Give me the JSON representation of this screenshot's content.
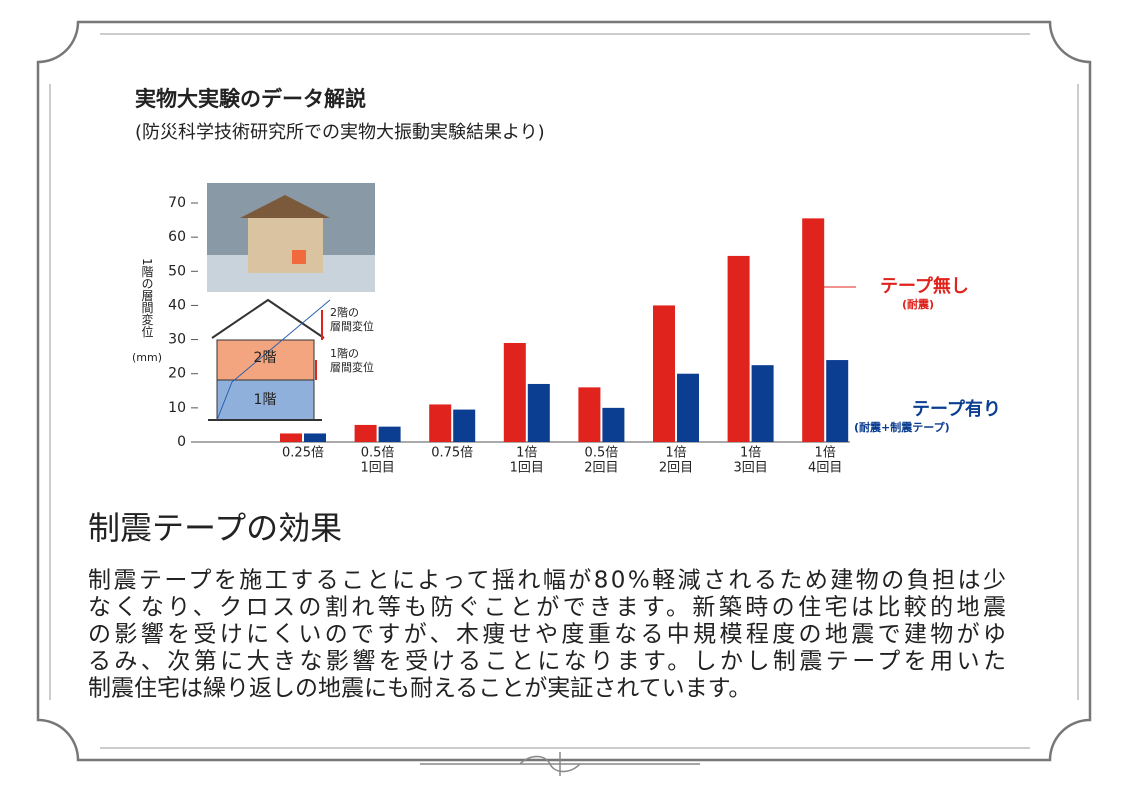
{
  "chart_data": {
    "type": "bar",
    "title": "実物大実験のデータ解説",
    "subtitle": "(防災科学技術研究所での実物大振動実験結果より)",
    "y_label": "1階の層間変位",
    "y_unit": "(mm)",
    "categories": [
      [
        "0.25倍"
      ],
      [
        "0.5倍",
        "1回目"
      ],
      [
        "0.75倍"
      ],
      [
        "1倍",
        "1回目"
      ],
      [
        "0.5倍",
        "2回目"
      ],
      [
        "1倍",
        "2回目"
      ],
      [
        "1倍",
        "3回目"
      ],
      [
        "1倍",
        "4回目"
      ]
    ],
    "series": [
      {
        "name": "テープ無し",
        "note": "(耐震)",
        "color": "#e0231c",
        "values": [
          2.5,
          5,
          11,
          29,
          16,
          40,
          54.5,
          65.5
        ]
      },
      {
        "name": "テープ有り",
        "note": "(耐震+制震テープ)",
        "color": "#0b3d91",
        "values": [
          2.5,
          4.5,
          9.5,
          17,
          10,
          20,
          22.5,
          24
        ]
      }
    ],
    "ylim": [
      0,
      70
    ],
    "yticks": [
      0,
      10,
      20,
      30,
      40,
      50,
      60,
      70
    ]
  },
  "diagram": {
    "floor2": "2階",
    "floor1": "1階",
    "drift2": [
      "2階の",
      "層間変位"
    ],
    "drift1": [
      "1階の",
      "層間変位"
    ]
  },
  "heading": "制震テープの効果",
  "body": [
    "制震テープを施工することによって揺れ幅が80%軽減されるため建物の負担は少",
    "なくなり、クロスの割れ等も防ぐことができます。新築時の住宅は比較的地震",
    "の影響を受けにくいのですが、木痩せや度重なる中規模程度の地震で建物がゆ",
    "るみ、次第に大きな影響を受けることになります。しかし制震テープを用いた",
    "制震住宅は繰り返しの地震にも耐えることが実証されています。"
  ]
}
